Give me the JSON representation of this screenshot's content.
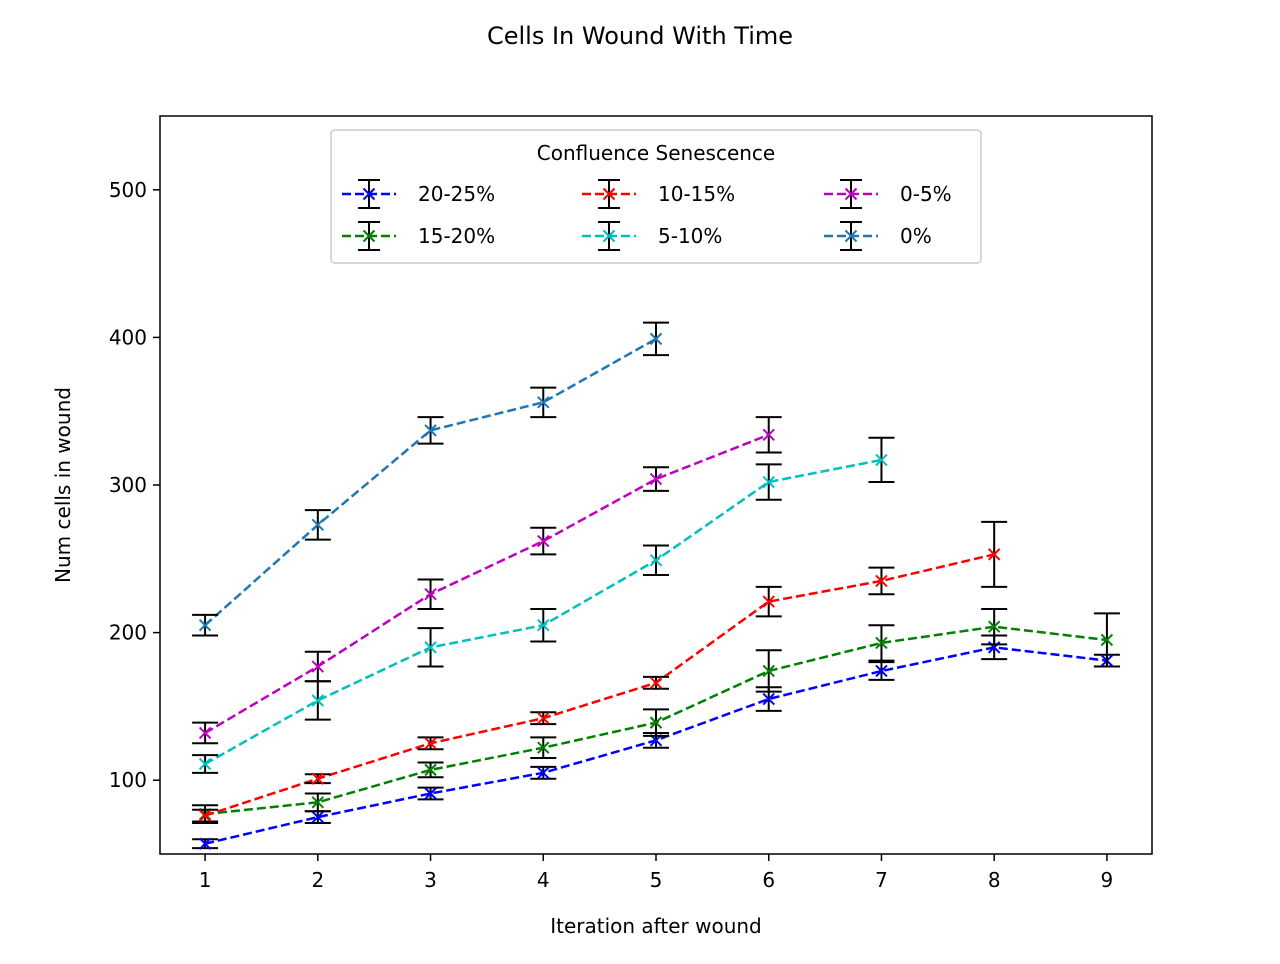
{
  "chart_data": {
    "type": "line",
    "title": "Cells In Wound With Time",
    "xlabel": "Iteration after wound",
    "ylabel": "Num cells in wound",
    "xlim": [
      0.6,
      9.4
    ],
    "ylim": [
      50,
      550
    ],
    "xticks": [
      1,
      2,
      3,
      4,
      5,
      6,
      7,
      8,
      9
    ],
    "yticks": [
      100,
      200,
      300,
      400,
      500
    ],
    "grid": false,
    "legend": {
      "title": "Confluence Senescence",
      "placement": "upper-center",
      "columns": 3
    },
    "marker": "x",
    "line_style": "dashed",
    "error_bar_color": "#000000",
    "series": [
      {
        "name": "20-25%",
        "color": "#0000ff",
        "x": [
          1,
          2,
          3,
          4,
          5,
          6,
          7,
          8,
          9
        ],
        "y": [
          57,
          75,
          91,
          105,
          127,
          155,
          174,
          190,
          181
        ],
        "err": [
          3,
          4,
          4,
          4,
          5,
          8,
          6,
          8,
          4
        ]
      },
      {
        "name": "15-20%",
        "color": "#008000",
        "x": [
          1,
          2,
          3,
          4,
          5,
          6,
          7,
          8,
          9
        ],
        "y": [
          77,
          85,
          107,
          122,
          139,
          174,
          193,
          204,
          195
        ],
        "err": [
          6,
          6,
          5,
          7,
          9,
          14,
          12,
          12,
          18
        ]
      },
      {
        "name": "10-15%",
        "color": "#ff0000",
        "x": [
          1,
          2,
          3,
          4,
          5,
          6,
          7,
          8
        ],
        "y": [
          76,
          101,
          125,
          142,
          166,
          221,
          235,
          253
        ],
        "err": [
          4,
          3,
          4,
          4,
          4,
          10,
          9,
          22
        ]
      },
      {
        "name": "5-10%",
        "color": "#00bfbf",
        "x": [
          1,
          2,
          3,
          4,
          5,
          6,
          7
        ],
        "y": [
          111,
          154,
          190,
          205,
          249,
          302,
          317
        ],
        "err": [
          6,
          13,
          13,
          11,
          10,
          12,
          15
        ]
      },
      {
        "name": "0-5%",
        "color": "#bf00bf",
        "x": [
          1,
          2,
          3,
          4,
          5,
          6
        ],
        "y": [
          132,
          177,
          226,
          262,
          304,
          334
        ],
        "err": [
          7,
          10,
          10,
          9,
          8,
          12
        ]
      },
      {
        "name": "0%",
        "color": "#1f77b4",
        "x": [
          1,
          2,
          3,
          4,
          5
        ],
        "y": [
          205,
          273,
          337,
          356,
          399
        ],
        "err": [
          7,
          10,
          9,
          10,
          11
        ]
      }
    ]
  }
}
